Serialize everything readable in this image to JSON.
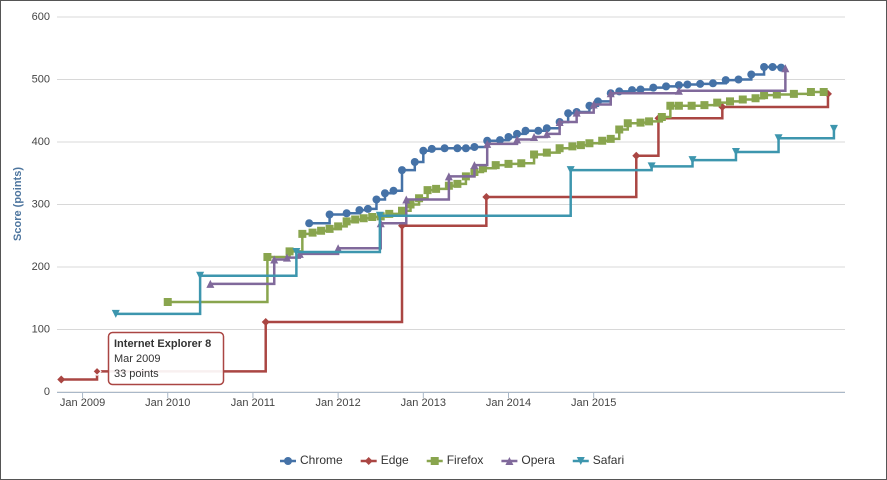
{
  "chart_data": {
    "type": "step-line",
    "y_label": "Score (points)",
    "xlim": [
      2008.7,
      2017.95
    ],
    "xticks": [
      {
        "value": 2009,
        "label": "Jan 2009"
      },
      {
        "value": 2010,
        "label": "Jan 2010"
      },
      {
        "value": 2011,
        "label": "Jan 2011"
      },
      {
        "value": 2012,
        "label": "Jan 2012"
      },
      {
        "value": 2013,
        "label": "Jan 2013"
      },
      {
        "value": 2014,
        "label": "Jan 2014"
      },
      {
        "value": 2015,
        "label": "Jan 2015"
      }
    ],
    "ylim": [
      0,
      600
    ],
    "yticks": [
      0,
      100,
      200,
      300,
      400,
      500,
      600
    ],
    "grid": true,
    "legend": "bottom",
    "series": [
      {
        "name": "Chrome",
        "color": "#4572a7",
        "marker": "circle",
        "x": [
          2011.66,
          2011.9,
          2012.1,
          2012.25,
          2012.35,
          2012.45,
          2012.55,
          2012.65,
          2012.75,
          2012.9,
          2013.0,
          2013.1,
          2013.25,
          2013.4,
          2013.5,
          2013.6,
          2013.75,
          2013.9,
          2014.0,
          2014.1,
          2014.2,
          2014.35,
          2014.45,
          2014.6,
          2014.7,
          2014.8,
          2014.95,
          2015.05,
          2015.2,
          2015.3,
          2015.45,
          2015.55,
          2015.7,
          2015.85,
          2016.0,
          2016.1,
          2016.25,
          2016.4,
          2016.55,
          2016.7,
          2016.85,
          2017.0,
          2017.1,
          2017.2
        ],
        "values": [
          270,
          284,
          286,
          291,
          293,
          308,
          318,
          322,
          355,
          368,
          386,
          389,
          390,
          390,
          390,
          392,
          402,
          403,
          408,
          413,
          418,
          418,
          422,
          432,
          446,
          448,
          458,
          465,
          478,
          481,
          483,
          484,
          487,
          489,
          491,
          492,
          493,
          494,
          499,
          500,
          508,
          520,
          520,
          519
        ]
      },
      {
        "name": "Edge",
        "color": "#aa4643",
        "marker": "diamond",
        "x": [
          2008.75,
          2009.17,
          2011.15,
          2012.75,
          2013.74,
          2015.5,
          2015.76,
          2016.51,
          2017.75
        ],
        "values": [
          20,
          33,
          112,
          266,
          312,
          378,
          438,
          456,
          477
        ]
      },
      {
        "name": "Firefox",
        "color": "#89a54e",
        "marker": "square",
        "x": [
          2010.0,
          2011.17,
          2011.43,
          2011.58,
          2011.7,
          2011.8,
          2011.9,
          2012.0,
          2012.1,
          2012.2,
          2012.3,
          2012.4,
          2012.5,
          2012.6,
          2012.75,
          2012.85,
          2012.95,
          2013.05,
          2013.15,
          2013.3,
          2013.4,
          2013.5,
          2013.6,
          2013.7,
          2013.85,
          2014.0,
          2014.15,
          2014.3,
          2014.45,
          2014.6,
          2014.75,
          2014.85,
          2014.95,
          2015.1,
          2015.2,
          2015.3,
          2015.4,
          2015.55,
          2015.65,
          2015.8,
          2015.9,
          2016.0,
          2016.15,
          2016.3,
          2016.45,
          2016.6,
          2016.75,
          2016.9,
          2017.0,
          2017.15,
          2017.35,
          2017.55,
          2017.7
        ],
        "values": [
          144,
          216,
          225,
          253,
          255,
          258,
          261,
          265,
          273,
          276,
          278,
          280,
          281,
          285,
          290,
          300,
          310,
          323,
          325,
          330,
          333,
          345,
          352,
          358,
          363,
          365,
          366,
          380,
          383,
          390,
          393,
          395,
          398,
          402,
          405,
          420,
          430,
          431,
          433,
          440,
          458,
          458,
          458,
          459,
          463,
          465,
          468,
          470,
          475,
          476,
          477,
          480,
          480
        ]
      },
      {
        "name": "Opera",
        "color": "#80699b",
        "marker": "triangle",
        "x": [
          2010.5,
          2011.25,
          2011.4,
          2011.55,
          2012.0,
          2012.5,
          2012.8,
          2013.3,
          2013.6,
          2013.75,
          2014.1,
          2014.3,
          2014.45,
          2014.6,
          2014.8,
          2015.0,
          2015.2,
          2016.0,
          2017.25
        ],
        "values": [
          173,
          212,
          215,
          221,
          230,
          270,
          308,
          345,
          363,
          397,
          404,
          408,
          413,
          432,
          447,
          460,
          478,
          482,
          518
        ]
      },
      {
        "name": "Safari",
        "color": "#3d96ae",
        "marker": "triangle-down",
        "x": [
          2009.39,
          2010.38,
          2011.51,
          2012.49,
          2014.73,
          2015.68,
          2016.16,
          2016.67,
          2017.17,
          2017.82
        ],
        "values": [
          125,
          186,
          224,
          282,
          355,
          361,
          371,
          384,
          406,
          421
        ]
      }
    ],
    "tooltip": {
      "title": "Internet Explorer 8",
      "date": "Mar 2009",
      "score": "33 points",
      "series": 1,
      "point": 1
    }
  }
}
